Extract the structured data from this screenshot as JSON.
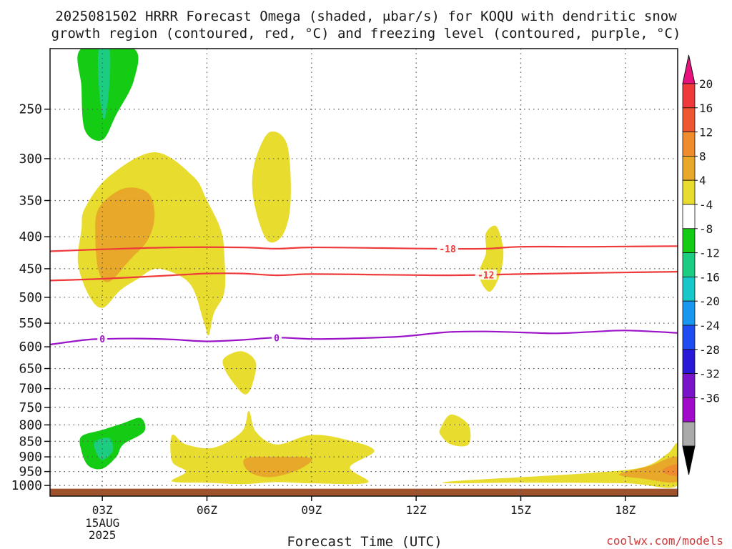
{
  "header": {
    "title_line1": "2025081502 HRRR Forecast Omega (shaded, μbar/s) for KOQU with dendritic snow",
    "title_line2": "growth region (contoured, red, °C) and freezing level (contoured, purple, °C)"
  },
  "footer": {
    "xlabel": "Forecast Time (UTC)",
    "watermark": "coolwx.com/models"
  },
  "chart_data": {
    "type": "heatmap",
    "title": "2025081502 HRRR Forecast Omega (shaded, μbar/s) for KOQU with dendritic snow growth region (contoured, red, °C) and freezing level (contoured, purple, °C)",
    "xlabel": "Forecast Time (UTC)",
    "ylabel": "",
    "x_ticks": [
      "03Z",
      "06Z",
      "09Z",
      "12Z",
      "15Z",
      "18Z"
    ],
    "x_date_label": [
      "15AUG",
      "2025"
    ],
    "xlim_hours": [
      1.5,
      19.5
    ],
    "y_axis": "pressure (hPa), log scale, inverted",
    "y_ticks": [
      250,
      300,
      350,
      400,
      450,
      500,
      550,
      600,
      650,
      700,
      750,
      800,
      850,
      900,
      950,
      1000
    ],
    "ylim_hpa": [
      200,
      1040
    ],
    "colorbar": {
      "labels": [
        20,
        16,
        12,
        8,
        4,
        -4,
        -8,
        -12,
        -16,
        -20,
        -24,
        -28,
        -32,
        -36
      ],
      "colors": [
        "#e8127f",
        "#ee3a3a",
        "#ee5530",
        "#ee8c2e",
        "#e8a82a",
        "#e8dc2e",
        "#ffffff",
        "#14cc14",
        "#1ccc80",
        "#18c8c8",
        "#1896f0",
        "#1e4cf0",
        "#2818d8",
        "#7a14c8",
        "#a00ac8",
        "#aaaaaa",
        "#000000"
      ]
    },
    "contours": [
      {
        "name": "-18",
        "color": "#ee3a3a",
        "label_hour": 12.9,
        "points": [
          [
            1.5,
            422
          ],
          [
            3,
            419
          ],
          [
            5,
            416
          ],
          [
            7,
            416
          ],
          [
            8,
            418
          ],
          [
            9,
            416
          ],
          [
            11,
            417
          ],
          [
            12.5,
            418
          ],
          [
            14,
            418
          ],
          [
            15,
            415
          ],
          [
            17,
            415
          ],
          [
            19.5,
            414
          ]
        ]
      },
      {
        "name": "-12",
        "color": "#ee3a3a",
        "label_hour": 14.0,
        "points": [
          [
            1.5,
            470
          ],
          [
            3,
            467
          ],
          [
            5,
            461
          ],
          [
            6,
            458
          ],
          [
            7,
            458
          ],
          [
            8,
            461
          ],
          [
            9,
            459
          ],
          [
            11,
            460
          ],
          [
            13,
            461
          ],
          [
            15,
            459
          ],
          [
            17,
            457
          ],
          [
            19.5,
            455
          ]
        ]
      },
      {
        "name": "0",
        "color": "#9b14c8",
        "label_hour_1": 3.0,
        "label_hour_2": 8.0,
        "points": [
          [
            1.5,
            595
          ],
          [
            2.5,
            585
          ],
          [
            3,
            583
          ],
          [
            4,
            582
          ],
          [
            5,
            584
          ],
          [
            6,
            588
          ],
          [
            7,
            585
          ],
          [
            8,
            580
          ],
          [
            9,
            583
          ],
          [
            10,
            582
          ],
          [
            11.5,
            578
          ],
          [
            12.5,
            571
          ],
          [
            13,
            568
          ],
          [
            14,
            567
          ],
          [
            15,
            569
          ],
          [
            16,
            571
          ],
          [
            17,
            568
          ],
          [
            18,
            565
          ],
          [
            19.5,
            570
          ]
        ]
      }
    ],
    "regions": [
      {
        "value": "-8",
        "color": "#14cc14",
        "points": [
          [
            2.4,
            200
          ],
          [
            3.9,
            200
          ],
          [
            3.9,
            225
          ],
          [
            3.4,
            255
          ],
          [
            3.0,
            280
          ],
          [
            2.5,
            270
          ],
          [
            2.4,
            230
          ]
        ]
      },
      {
        "value": "-12",
        "color": "#1ccc80",
        "points": [
          [
            2.9,
            200
          ],
          [
            3.2,
            200
          ],
          [
            3.2,
            230
          ],
          [
            3.05,
            260
          ],
          [
            2.9,
            230
          ]
        ]
      },
      {
        "value": "4",
        "color": "#e8dc2e",
        "points": [
          [
            2.5,
            360
          ],
          [
            3.2,
            320
          ],
          [
            4.5,
            293
          ],
          [
            5.6,
            320
          ],
          [
            6.0,
            350
          ],
          [
            6.4,
            390
          ],
          [
            6.5,
            430
          ],
          [
            6.5,
            490
          ],
          [
            6.2,
            530
          ],
          [
            6.05,
            575
          ],
          [
            5.9,
            545
          ],
          [
            5.5,
            475
          ],
          [
            4.6,
            450
          ],
          [
            4.0,
            468
          ],
          [
            3.5,
            488
          ],
          [
            3.0,
            520
          ],
          [
            2.6,
            495
          ],
          [
            2.3,
            440
          ],
          [
            2.4,
            390
          ]
        ]
      },
      {
        "value": "8",
        "color": "#e8a82a",
        "points": [
          [
            2.9,
            360
          ],
          [
            3.6,
            335
          ],
          [
            4.3,
            340
          ],
          [
            4.5,
            370
          ],
          [
            4.3,
            405
          ],
          [
            3.8,
            435
          ],
          [
            3.2,
            472
          ],
          [
            2.9,
            455
          ],
          [
            2.8,
            400
          ]
        ]
      },
      {
        "value": "4",
        "color": "#e8dc2e",
        "points": [
          [
            7.4,
            300
          ],
          [
            7.8,
            272
          ],
          [
            8.3,
            285
          ],
          [
            8.4,
            350
          ],
          [
            8.2,
            395
          ],
          [
            7.8,
            408
          ],
          [
            7.5,
            380
          ],
          [
            7.3,
            335
          ]
        ]
      },
      {
        "value": "4",
        "color": "#e8dc2e",
        "points": [
          [
            14.0,
            395
          ],
          [
            14.3,
            385
          ],
          [
            14.5,
            420
          ],
          [
            14.4,
            460
          ],
          [
            14.1,
            490
          ],
          [
            13.8,
            460
          ],
          [
            14.0,
            425
          ]
        ]
      },
      {
        "value": "4",
        "color": "#e8dc2e",
        "points": [
          [
            6.5,
            625
          ],
          [
            7.0,
            610
          ],
          [
            7.4,
            635
          ],
          [
            7.3,
            690
          ],
          [
            7.1,
            715
          ],
          [
            6.8,
            690
          ],
          [
            6.5,
            650
          ]
        ]
      },
      {
        "value": "-8",
        "color": "#14cc14",
        "points": [
          [
            2.4,
            835
          ],
          [
            3.0,
            815
          ],
          [
            3.6,
            795
          ],
          [
            4.1,
            780
          ],
          [
            4.2,
            820
          ],
          [
            3.6,
            860
          ],
          [
            3.4,
            900
          ],
          [
            3.0,
            940
          ],
          [
            2.6,
            930
          ],
          [
            2.4,
            880
          ]
        ]
      },
      {
        "value": "-12",
        "color": "#1ccc80",
        "points": [
          [
            2.8,
            850
          ],
          [
            3.2,
            840
          ],
          [
            3.3,
            880
          ],
          [
            3.0,
            910
          ],
          [
            2.8,
            880
          ]
        ]
      },
      {
        "value": "4",
        "color": "#e8dc2e",
        "points": [
          [
            12.7,
            810
          ],
          [
            13.0,
            770
          ],
          [
            13.5,
            800
          ],
          [
            13.5,
            860
          ],
          [
            13.0,
            860
          ],
          [
            12.7,
            830
          ]
        ]
      },
      {
        "value": "4",
        "color": "#e8dc2e",
        "points": [
          [
            5.0,
            830
          ],
          [
            5.4,
            860
          ],
          [
            6.2,
            870
          ],
          [
            7.0,
            820
          ],
          [
            7.2,
            760
          ],
          [
            7.4,
            820
          ],
          [
            8.0,
            860
          ],
          [
            9.0,
            830
          ],
          [
            10.0,
            845
          ],
          [
            10.8,
            880
          ],
          [
            10.1,
            935
          ],
          [
            10.6,
            990
          ],
          [
            9.0,
            992
          ],
          [
            8.0,
            988
          ],
          [
            7.0,
            995
          ],
          [
            6.0,
            990
          ],
          [
            5.0,
            985
          ],
          [
            5.4,
            950
          ],
          [
            5.0,
            915
          ]
        ]
      },
      {
        "value": "8",
        "color": "#e8a82a",
        "points": [
          [
            7.1,
            905
          ],
          [
            8.0,
            900
          ],
          [
            9.0,
            905
          ],
          [
            8.6,
            945
          ],
          [
            7.8,
            970
          ],
          [
            7.2,
            950
          ]
        ]
      },
      {
        "value": "4",
        "color": "#e8dc2e",
        "points": [
          [
            13.0,
            985
          ],
          [
            15.0,
            970
          ],
          [
            17.0,
            955
          ],
          [
            18.5,
            935
          ],
          [
            19.2,
            890
          ],
          [
            19.5,
            860
          ],
          [
            19.5,
            1000
          ],
          [
            18.0,
            992
          ],
          [
            15.0,
            990
          ],
          [
            13.0,
            992
          ]
        ]
      },
      {
        "value": "8",
        "color": "#e8a82a",
        "points": [
          [
            17.9,
            955
          ],
          [
            18.7,
            930
          ],
          [
            19.5,
            900
          ],
          [
            19.5,
            985
          ],
          [
            18.5,
            975
          ],
          [
            17.9,
            965
          ]
        ]
      },
      {
        "value": "12",
        "color": "#ee8c2e",
        "points": [
          [
            19.1,
            940
          ],
          [
            19.5,
            925
          ],
          [
            19.5,
            965
          ],
          [
            19.1,
            955
          ]
        ]
      }
    ],
    "terrain": {
      "color": "#a0522d",
      "top_hpa": 1012
    }
  }
}
